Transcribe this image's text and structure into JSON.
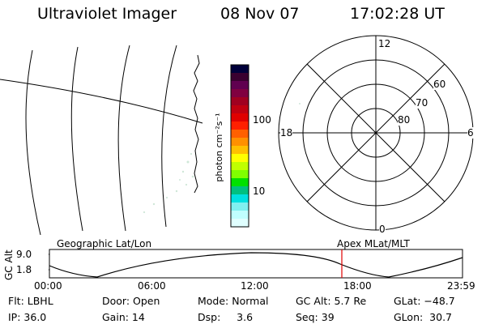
{
  "header": {
    "instrument": "Ultraviolet Imager",
    "date": "08 Nov 07",
    "time": "17:02:28 UT"
  },
  "colorbar": {
    "unit_label": "photon cm⁻²s⁻¹",
    "ticks": [
      "100",
      "10"
    ],
    "colors": [
      "#00003a",
      "#3a0030",
      "#600050",
      "#800040",
      "#a00020",
      "#c00010",
      "#e00000",
      "#ff2000",
      "#ff6000",
      "#ff9000",
      "#ffc000",
      "#ffff00",
      "#c0ff00",
      "#80ff00",
      "#00e000",
      "#00c080",
      "#00e0e0",
      "#80f0f0",
      "#c0ffff",
      "#e0ffff"
    ]
  },
  "polar_plot": {
    "mlt_labels": {
      "top": "12",
      "bottom": "0",
      "left": "18",
      "right": "6"
    },
    "lat_labels": [
      "60",
      "70",
      "80"
    ]
  },
  "timeline": {
    "left_label": "Geographic Lat/Lon",
    "right_label": "Apex MLat/MLT",
    "axis_label": "GC Alt",
    "y_ticks": [
      "9.0",
      "1.8"
    ],
    "x_ticks": [
      "00:00",
      "06:00",
      "12:00",
      "18:00",
      "23:59"
    ],
    "current_marker_time": "17:02:28"
  },
  "status": {
    "col1": [
      "Flt: LBHL",
      "IP: 36.0"
    ],
    "col2": [
      "Door: Open",
      "Gain: 14"
    ],
    "col3": [
      "Mode: Normal",
      "Dsp:     3.6"
    ],
    "col4": [
      "GC Alt: 5.7 Re",
      "Seq: 39"
    ],
    "col5": [
      "GLat: −48.7",
      "GLon:  30.7"
    ]
  }
}
